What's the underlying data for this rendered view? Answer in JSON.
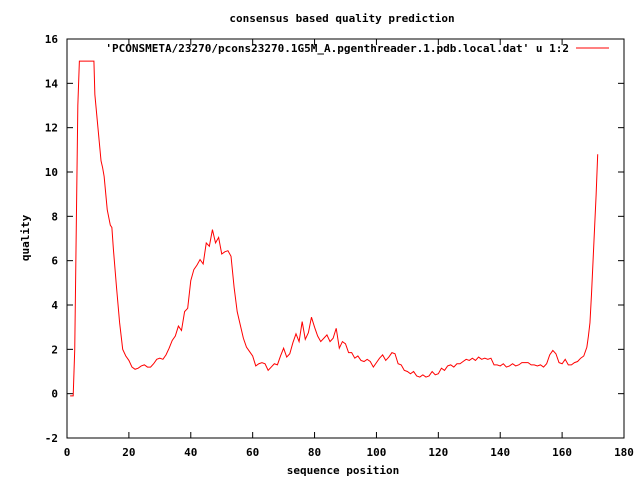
{
  "chart_data": {
    "type": "line",
    "title": "consensus based quality prediction",
    "xlabel": "sequence position",
    "ylabel": "quality",
    "xlim": [
      0,
      180
    ],
    "ylim": [
      -2,
      16
    ],
    "x_ticks": [
      0,
      20,
      40,
      60,
      80,
      100,
      120,
      140,
      160,
      180
    ],
    "y_ticks": [
      -2,
      0,
      2,
      4,
      6,
      8,
      10,
      12,
      14,
      16
    ],
    "grid": false,
    "legend_position": "top-right",
    "series": [
      {
        "name": "'PCONSMETA/23270/pcons23270.1G5M_A.pgenthreader.1.pdb.local.dat' u 1:2",
        "color": "#ff0000",
        "points": [
          [
            1,
            -0.1
          ],
          [
            2,
            -0.1
          ],
          [
            2.5,
            2
          ],
          [
            3,
            7.5
          ],
          [
            3.5,
            13
          ],
          [
            4,
            15
          ],
          [
            5,
            15
          ],
          [
            6,
            15
          ],
          [
            7,
            15
          ],
          [
            8,
            15
          ],
          [
            8.7,
            15
          ],
          [
            9,
            13.5
          ],
          [
            10,
            12
          ],
          [
            11,
            10.5
          ],
          [
            11.5,
            10.2
          ],
          [
            12,
            9.8
          ],
          [
            13,
            8.3
          ],
          [
            14,
            7.6
          ],
          [
            14.5,
            7.5
          ],
          [
            15,
            6.5
          ],
          [
            16,
            4.8
          ],
          [
            17,
            3.2
          ],
          [
            18,
            2
          ],
          [
            19,
            1.7
          ],
          [
            20,
            1.5
          ],
          [
            21,
            1.2
          ],
          [
            22,
            1.1
          ],
          [
            23,
            1.15
          ],
          [
            24,
            1.25
          ],
          [
            25,
            1.3
          ],
          [
            26,
            1.2
          ],
          [
            27,
            1.2
          ],
          [
            28,
            1.35
          ],
          [
            29,
            1.55
          ],
          [
            30,
            1.6
          ],
          [
            31,
            1.55
          ],
          [
            32,
            1.75
          ],
          [
            33,
            2.05
          ],
          [
            34,
            2.4
          ],
          [
            35,
            2.6
          ],
          [
            36,
            3.05
          ],
          [
            37,
            2.85
          ],
          [
            38,
            3.7
          ],
          [
            39,
            3.85
          ],
          [
            40,
            5.1
          ],
          [
            41,
            5.6
          ],
          [
            42,
            5.8
          ],
          [
            43,
            6.05
          ],
          [
            44,
            5.85
          ],
          [
            45,
            6.8
          ],
          [
            46,
            6.65
          ],
          [
            47,
            7.4
          ],
          [
            48,
            6.8
          ],
          [
            49,
            7.05
          ],
          [
            50,
            6.3
          ],
          [
            51,
            6.4
          ],
          [
            52,
            6.45
          ],
          [
            53,
            6.2
          ],
          [
            54,
            4.8
          ],
          [
            55,
            3.7
          ],
          [
            56,
            3.1
          ],
          [
            57,
            2.5
          ],
          [
            58,
            2.1
          ],
          [
            59,
            1.9
          ],
          [
            60,
            1.7
          ],
          [
            61,
            1.25
          ],
          [
            62,
            1.35
          ],
          [
            63,
            1.4
          ],
          [
            64,
            1.35
          ],
          [
            65,
            1.05
          ],
          [
            66,
            1.2
          ],
          [
            67,
            1.35
          ],
          [
            68,
            1.3
          ],
          [
            69,
            1.7
          ],
          [
            70,
            2.05
          ],
          [
            71,
            1.65
          ],
          [
            72,
            1.8
          ],
          [
            73,
            2.3
          ],
          [
            74,
            2.7
          ],
          [
            75,
            2.35
          ],
          [
            76,
            3.25
          ],
          [
            77,
            2.45
          ],
          [
            78,
            2.75
          ],
          [
            79,
            3.45
          ],
          [
            80,
            3.0
          ],
          [
            81,
            2.6
          ],
          [
            82,
            2.35
          ],
          [
            83,
            2.5
          ],
          [
            84,
            2.65
          ],
          [
            85,
            2.35
          ],
          [
            86,
            2.5
          ],
          [
            87,
            2.95
          ],
          [
            88,
            2.05
          ],
          [
            89,
            2.35
          ],
          [
            90,
            2.25
          ],
          [
            91,
            1.85
          ],
          [
            92,
            1.85
          ],
          [
            93,
            1.6
          ],
          [
            94,
            1.7
          ],
          [
            95,
            1.5
          ],
          [
            96,
            1.45
          ],
          [
            97,
            1.55
          ],
          [
            98,
            1.45
          ],
          [
            99,
            1.2
          ],
          [
            100,
            1.4
          ],
          [
            101,
            1.6
          ],
          [
            102,
            1.75
          ],
          [
            103,
            1.5
          ],
          [
            104,
            1.65
          ],
          [
            105,
            1.85
          ],
          [
            106,
            1.8
          ],
          [
            107,
            1.35
          ],
          [
            108,
            1.3
          ],
          [
            109,
            1.05
          ],
          [
            110,
            1.0
          ],
          [
            111,
            0.9
          ],
          [
            112,
            1.0
          ],
          [
            113,
            0.8
          ],
          [
            114,
            0.75
          ],
          [
            115,
            0.85
          ],
          [
            116,
            0.75
          ],
          [
            117,
            0.8
          ],
          [
            118,
            1.0
          ],
          [
            119,
            0.85
          ],
          [
            120,
            0.9
          ],
          [
            121,
            1.15
          ],
          [
            122,
            1.05
          ],
          [
            123,
            1.25
          ],
          [
            124,
            1.3
          ],
          [
            125,
            1.2
          ],
          [
            126,
            1.35
          ],
          [
            127,
            1.35
          ],
          [
            128,
            1.45
          ],
          [
            129,
            1.55
          ],
          [
            130,
            1.5
          ],
          [
            131,
            1.6
          ],
          [
            132,
            1.5
          ],
          [
            133,
            1.65
          ],
          [
            134,
            1.55
          ],
          [
            135,
            1.6
          ],
          [
            136,
            1.55
          ],
          [
            137,
            1.6
          ],
          [
            138,
            1.3
          ],
          [
            139,
            1.3
          ],
          [
            140,
            1.25
          ],
          [
            141,
            1.35
          ],
          [
            142,
            1.2
          ],
          [
            143,
            1.25
          ],
          [
            144,
            1.35
          ],
          [
            145,
            1.25
          ],
          [
            146,
            1.3
          ],
          [
            147,
            1.4
          ],
          [
            148,
            1.4
          ],
          [
            149,
            1.4
          ],
          [
            150,
            1.3
          ],
          [
            151,
            1.3
          ],
          [
            152,
            1.25
          ],
          [
            153,
            1.3
          ],
          [
            154,
            1.2
          ],
          [
            155,
            1.35
          ],
          [
            156,
            1.75
          ],
          [
            157,
            1.95
          ],
          [
            158,
            1.8
          ],
          [
            159,
            1.4
          ],
          [
            160,
            1.35
          ],
          [
            161,
            1.55
          ],
          [
            162,
            1.3
          ],
          [
            163,
            1.3
          ],
          [
            164,
            1.4
          ],
          [
            165,
            1.45
          ],
          [
            166,
            1.6
          ],
          [
            167,
            1.7
          ],
          [
            168,
            2.1
          ],
          [
            168.5,
            2.6
          ],
          [
            169,
            3.2
          ],
          [
            169.5,
            4.5
          ],
          [
            170,
            6.0
          ],
          [
            170.5,
            7.5
          ],
          [
            171,
            9.0
          ],
          [
            171.5,
            10.8
          ]
        ]
      }
    ]
  }
}
